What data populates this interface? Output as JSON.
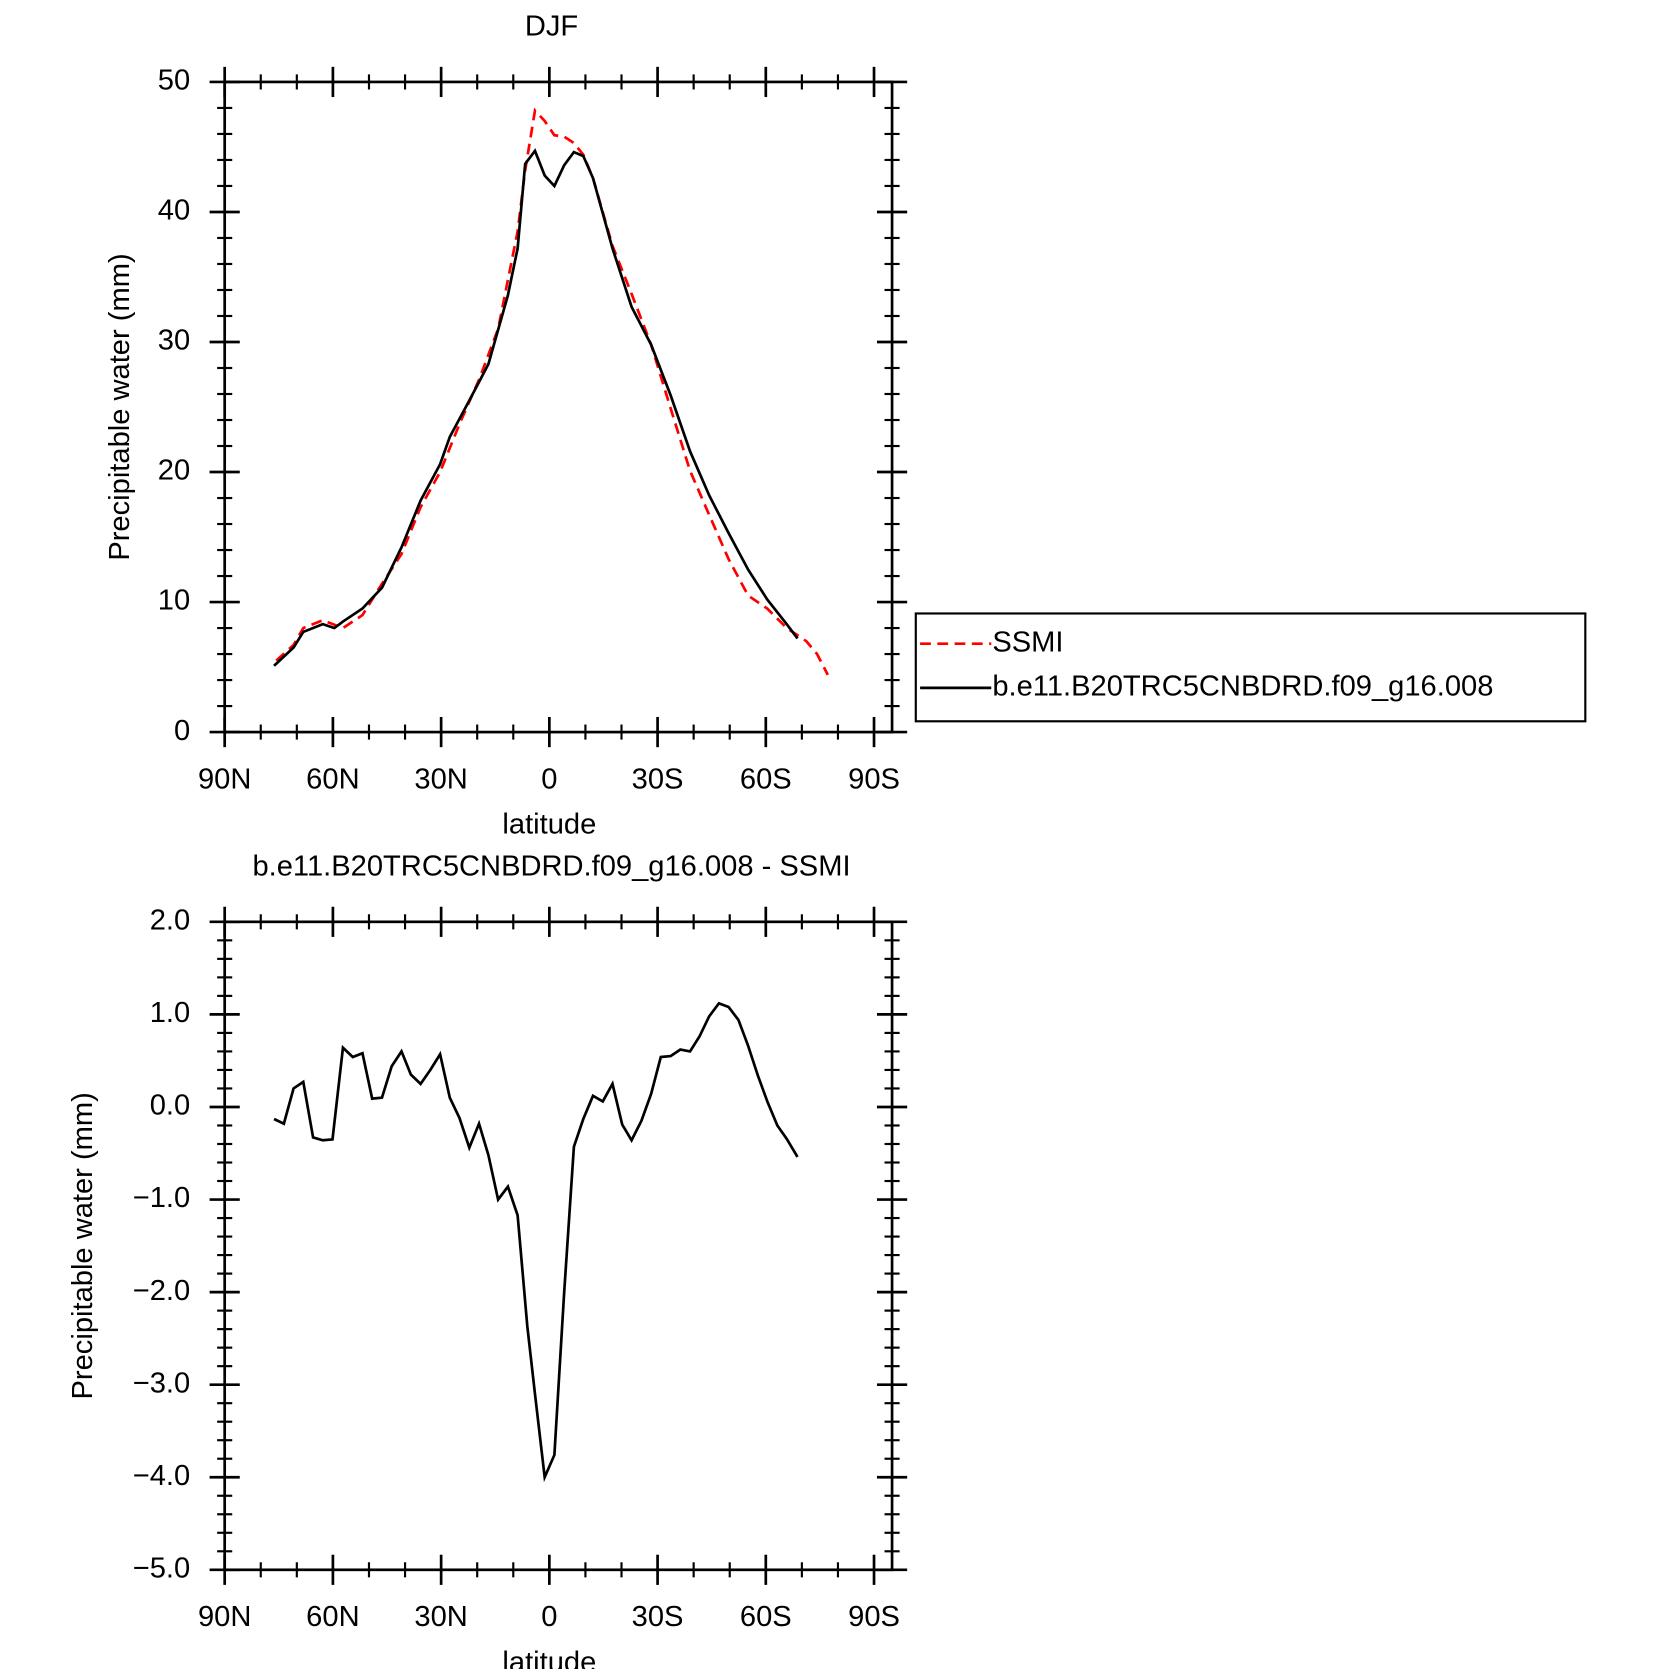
{
  "chart_data": [
    {
      "type": "line",
      "title": "DJF",
      "x_label": "latitude",
      "y_label": "Precipitable water (mm)",
      "xlim": [
        90,
        -95
      ],
      "ylim": [
        0,
        50
      ],
      "xticks": [
        {
          "value": 90,
          "label": "90N"
        },
        {
          "value": 60,
          "label": "60N"
        },
        {
          "value": 30,
          "label": "30N"
        },
        0,
        {
          "value": -30,
          "label": "30S"
        },
        {
          "value": -60,
          "label": "60S"
        },
        {
          "value": -90,
          "label": "90S"
        }
      ],
      "yticks": [
        0,
        10,
        20,
        30,
        40,
        50
      ],
      "legend": "right",
      "series": [
        {
          "name": "SSMI",
          "color": "#ff0000",
          "line_style": "dashed",
          "x": [
            75.7,
            70.9,
            68.2,
            62.8,
            57.2,
            51.8,
            46.4,
            41.0,
            35.7,
            30.3,
            24.9,
            19.5,
            14.2,
            8.8,
            6.7,
            4.0,
            1.3,
            -1.4,
            -4.1,
            -6.8,
            -9.4,
            -12.1,
            -17.5,
            -22.8,
            -28.2,
            -33.6,
            -39.0,
            -44.3,
            -49.7,
            -55.1,
            -60.4,
            -65.8,
            -71.2,
            -74.2,
            -77.2
          ],
          "values": [
            5.5,
            6.7,
            8.0,
            8.6,
            8.0,
            9.0,
            11.4,
            13.7,
            17.3,
            20.0,
            23.7,
            27.1,
            31.0,
            38.5,
            43.2,
            47.8,
            47.0,
            45.9,
            45.8,
            45.3,
            44.4,
            42.6,
            37.4,
            33.7,
            29.8,
            24.9,
            20.1,
            16.7,
            13.3,
            10.5,
            9.5,
            8.0,
            7.0,
            6.0,
            4.4
          ]
        },
        {
          "name": "b.e11.B20TRC5CNBDRD.f09_g16.008",
          "color": "#000000",
          "line_style": "solid",
          "x": [
            76.3,
            70.9,
            68.2,
            62.8,
            59.6,
            57.2,
            51.8,
            46.4,
            41.0,
            35.7,
            30.3,
            27.6,
            22.2,
            16.9,
            11.5,
            8.8,
            6.7,
            4.0,
            1.3,
            -1.4,
            -4.1,
            -6.8,
            -9.4,
            -12.1,
            -17.5,
            -22.8,
            -28.2,
            -33.6,
            -39.0,
            -44.3,
            -49.7,
            -55.1,
            -60.4,
            -65.8,
            -68.8
          ],
          "values": [
            5.1,
            6.5,
            7.7,
            8.3,
            8.0,
            8.5,
            9.5,
            11.1,
            14.2,
            17.8,
            20.6,
            22.7,
            25.5,
            28.3,
            33.6,
            37.2,
            43.7,
            44.7,
            42.8,
            42.0,
            43.6,
            44.6,
            44.3,
            42.6,
            37.2,
            32.7,
            29.8,
            25.9,
            21.6,
            18.2,
            15.3,
            12.5,
            10.2,
            8.3,
            7.2
          ]
        }
      ]
    },
    {
      "type": "line",
      "title": "b.e11.B20TRC5CNBDRD.f09_g16.008 - SSMI",
      "x_label": "latitude",
      "y_label": "Precipitable water (mm)",
      "xlim": [
        90,
        -95
      ],
      "ylim": [
        -5,
        2
      ],
      "xticks": [
        {
          "value": 90,
          "label": "90N"
        },
        {
          "value": 60,
          "label": "60N"
        },
        {
          "value": 30,
          "label": "30N"
        },
        0,
        {
          "value": -30,
          "label": "30S"
        },
        {
          "value": -60,
          "label": "60S"
        },
        {
          "value": -90,
          "label": "90S"
        }
      ],
      "yticks": [
        {
          "value": -5,
          "label": "−5.0"
        },
        {
          "value": -4,
          "label": "−4.0"
        },
        {
          "value": -3,
          "label": "−3.0"
        },
        {
          "value": -2,
          "label": "−2.0"
        },
        {
          "value": -1,
          "label": "−1.0"
        },
        {
          "value": 0,
          "label": "0.0"
        },
        {
          "value": 1,
          "label": "1.0"
        },
        {
          "value": 2,
          "label": "2.0"
        }
      ],
      "series": [
        {
          "color": "#000000",
          "line_style": "solid",
          "x": [
            76.3,
            73.6,
            70.9,
            68.2,
            65.5,
            62.8,
            60.1,
            57.2,
            54.5,
            51.8,
            49.1,
            46.4,
            43.7,
            41.0,
            38.4,
            35.7,
            33.0,
            30.3,
            27.6,
            24.9,
            22.2,
            19.5,
            16.9,
            14.2,
            11.5,
            8.8,
            6.1,
            4.0,
            1.3,
            -1.4,
            -4.1,
            -6.8,
            -9.4,
            -12.1,
            -14.8,
            -17.5,
            -20.2,
            -22.8,
            -25.5,
            -28.2,
            -30.9,
            -33.6,
            -36.3,
            -39.0,
            -41.6,
            -44.3,
            -47.0,
            -49.7,
            -52.4,
            -55.1,
            -57.8,
            -60.5,
            -63.2,
            -65.9,
            -68.8
          ],
          "values": [
            -0.13,
            -0.18,
            0.2,
            0.27,
            -0.33,
            -0.36,
            -0.35,
            0.64,
            0.54,
            0.58,
            0.09,
            0.1,
            0.44,
            0.6,
            0.35,
            0.25,
            0.4,
            0.57,
            0.1,
            -0.12,
            -0.44,
            -0.18,
            -0.52,
            -1.0,
            -0.86,
            -1.17,
            -2.37,
            -3.1,
            -4.0,
            -3.76,
            -2.0,
            -0.43,
            -0.13,
            0.12,
            0.06,
            0.25,
            -0.19,
            -0.36,
            -0.15,
            0.14,
            0.54,
            0.55,
            0.62,
            0.6,
            0.76,
            0.98,
            1.12,
            1.08,
            0.94,
            0.66,
            0.34,
            0.05,
            -0.2,
            -0.35,
            -0.54
          ]
        }
      ]
    }
  ]
}
